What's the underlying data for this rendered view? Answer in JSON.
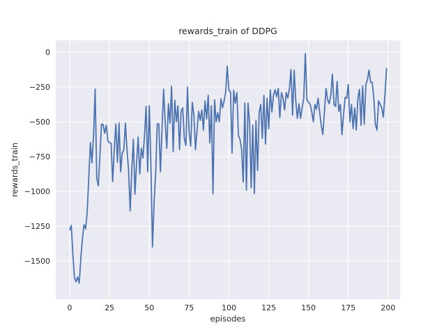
{
  "figure": {
    "title": "rewards_train of DDPG",
    "xlabel": "episodes",
    "ylabel": "rewards_train"
  },
  "colors": {
    "figure_bg": "#ffffff",
    "axes_bg": "#eaeaf2",
    "grid": "#ffffff",
    "line": "#4c72b0",
    "text": "#262626"
  },
  "axes": {
    "x_ticks": [
      0,
      25,
      50,
      75,
      100,
      125,
      150,
      175,
      200
    ],
    "y_ticks": [
      0,
      -250,
      -500,
      -750,
      -1000,
      -1250,
      -1500
    ],
    "x_range": [
      -8.75,
      207.6
    ],
    "y_range": [
      -1775,
      85
    ],
    "grid": true
  },
  "chart_data": {
    "type": "line",
    "title": "rewards_train of DDPG",
    "xlabel": "episodes",
    "ylabel": "rewards_train",
    "series_name": "rewards_train",
    "line_color": "#4c72b0",
    "x_start": 0,
    "x_step": 1,
    "xlim": [
      -8.75,
      207.6
    ],
    "ylim": [
      -1775,
      85
    ],
    "legend": "none",
    "values": [
      -1275,
      -1245,
      -1450,
      -1620,
      -1650,
      -1615,
      -1660,
      -1480,
      -1340,
      -1240,
      -1270,
      -1150,
      -900,
      -650,
      -795,
      -600,
      -265,
      -905,
      -960,
      -740,
      -517,
      -520,
      -583,
      -525,
      -637,
      -650,
      -655,
      -930,
      -700,
      -517,
      -790,
      -508,
      -860,
      -725,
      -700,
      -510,
      -700,
      -850,
      -1140,
      -850,
      -625,
      -1020,
      -800,
      -610,
      -875,
      -690,
      -760,
      -600,
      -390,
      -860,
      -385,
      -800,
      -1400,
      -1080,
      -870,
      -515,
      -515,
      -860,
      -550,
      -267,
      -510,
      -690,
      -370,
      -510,
      -245,
      -715,
      -345,
      -500,
      -385,
      -700,
      -420,
      -400,
      -620,
      -670,
      -250,
      -575,
      -675,
      -360,
      -450,
      -700,
      -560,
      -425,
      -490,
      -415,
      -560,
      -350,
      -480,
      -310,
      -652,
      -385,
      -1018,
      -343,
      -500,
      -435,
      -500,
      -335,
      -400,
      -350,
      -285,
      -100,
      -275,
      -283,
      -725,
      -275,
      -366,
      -291,
      -600,
      -628,
      -700,
      -933,
      -366,
      -991,
      -366,
      -508,
      -975,
      -525,
      -1016,
      -491,
      -850,
      -433,
      -375,
      -620,
      -310,
      -660,
      -330,
      -550,
      -270,
      -430,
      -310,
      -270,
      -320,
      -260,
      -470,
      -290,
      -330,
      -415,
      -290,
      -330,
      -260,
      -125,
      -452,
      -130,
      -350,
      -475,
      -370,
      -475,
      -400,
      -330,
      -10,
      -340,
      -360,
      -375,
      -425,
      -500,
      -375,
      -410,
      -330,
      -430,
      -525,
      -592,
      -430,
      -260,
      -340,
      -370,
      -310,
      -158,
      -375,
      -390,
      -210,
      -425,
      -375,
      -592,
      -450,
      -325,
      -330,
      -233,
      -500,
      -375,
      -550,
      -400,
      -560,
      -330,
      -267,
      -525,
      -242,
      -517,
      -235,
      -198,
      -128,
      -217,
      -217,
      -325,
      -517,
      -560,
      -350,
      -375,
      -400,
      -467,
      -310,
      -117
    ]
  }
}
